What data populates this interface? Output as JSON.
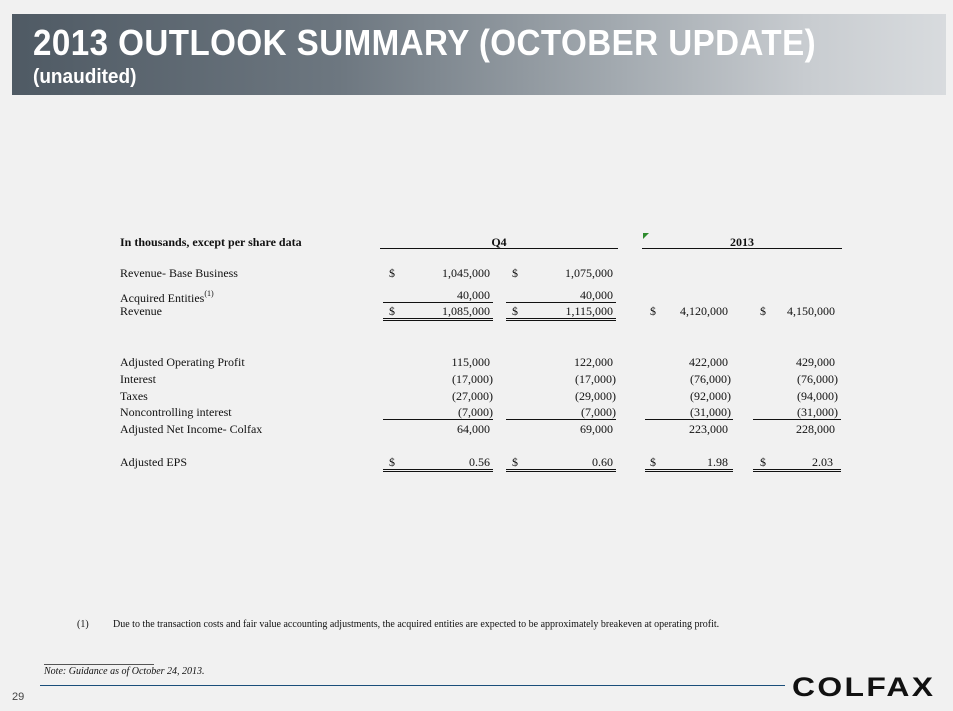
{
  "header": {
    "title": "2013 OUTLOOK SUMMARY (OCTOBER UPDATE)",
    "subtitle": "(unaudited)"
  },
  "table": {
    "units_label": "In thousands, except per share data",
    "col_group_q4": "Q4",
    "col_group_2013": "2013",
    "rows": {
      "base": {
        "label": "Revenue- Base Business",
        "q4_low_sign": "$",
        "q4_low": "1,045,000",
        "q4_high_sign": "$",
        "q4_high": "1,075,000"
      },
      "acquired": {
        "label": "Acquired Entities",
        "footnote_ref": "(1)",
        "q4_low": "40,000",
        "q4_high": "40,000"
      },
      "revenue": {
        "label": "Revenue",
        "q4_low_sign": "$",
        "q4_low": "1,085,000",
        "q4_high_sign": "$",
        "q4_high": "1,115,000",
        "y_low_sign": "$",
        "y_low": "4,120,000",
        "y_high_sign": "$",
        "y_high": "4,150,000"
      },
      "aop": {
        "label": "Adjusted Operating Profit",
        "q4_low": "115,000",
        "q4_high": "122,000",
        "y_low": "422,000",
        "y_high": "429,000"
      },
      "interest": {
        "label": "Interest",
        "q4_low": "(17,000)",
        "q4_high": "(17,000)",
        "y_low": "(76,000)",
        "y_high": "(76,000)"
      },
      "taxes": {
        "label": "Taxes",
        "q4_low": "(27,000)",
        "q4_high": "(29,000)",
        "y_low": "(92,000)",
        "y_high": "(94,000)"
      },
      "nci": {
        "label": "Noncontrolling interest",
        "q4_low": "(7,000)",
        "q4_high": "(7,000)",
        "y_low": "(31,000)",
        "y_high": "(31,000)"
      },
      "ani": {
        "label": "Adjusted Net Income- Colfax",
        "q4_low": "64,000",
        "q4_high": "69,000",
        "y_low": "223,000",
        "y_high": "228,000"
      },
      "eps": {
        "label": "Adjusted EPS",
        "q4_low_sign": "$",
        "q4_low": "0.56",
        "q4_high_sign": "$",
        "q4_high": "0.60",
        "y_low_sign": "$",
        "y_low": "1.98",
        "y_high_sign": "$",
        "y_high": "2.03"
      }
    }
  },
  "footnote": {
    "num": "(1)",
    "text": "Due to the transaction costs and fair value accounting adjustments, the acquired entities are expected to be approximately breakeven at operating profit."
  },
  "note": "Note: Guidance as of October 24, 2013.",
  "footer": {
    "page_number": "29",
    "logo": "COLFAX"
  },
  "colors": {
    "title_band_dark": "#4f5a64",
    "title_band_light": "#d8dbde",
    "rule_blue": "#1a4e7a",
    "marker_green": "#2e8b2e"
  }
}
